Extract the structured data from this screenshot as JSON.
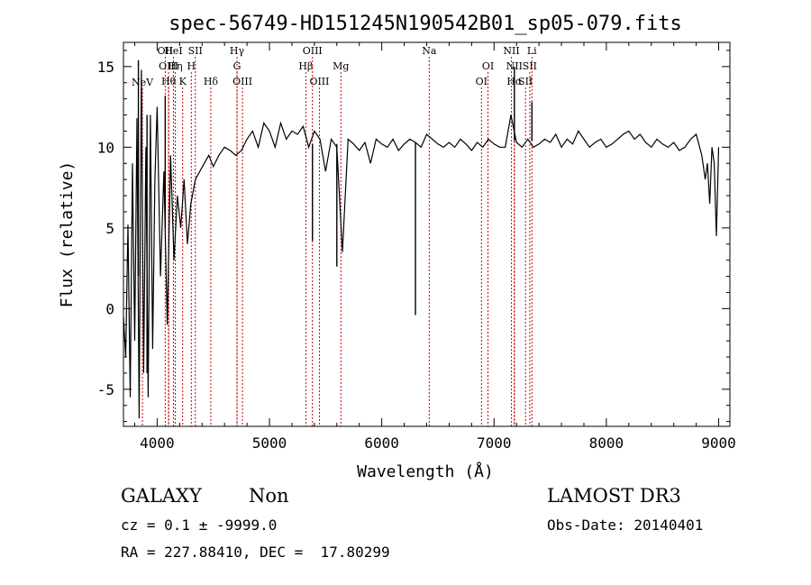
{
  "chart_data": {
    "type": "line",
    "title": "spec-56749-HD151245N190542B01_sp05-079.fits",
    "xlabel": "Wavelength (Å)",
    "ylabel": "Flux (relative)",
    "xlim": [
      3700,
      9100
    ],
    "ylim": [
      -7.3,
      16.5
    ],
    "x_ticks": [
      4000,
      5000,
      6000,
      7000,
      8000,
      9000
    ],
    "y_ticks": [
      -5,
      0,
      5,
      10,
      15
    ],
    "grid": false,
    "line_color": "#000000",
    "marker_color": "#cc0000",
    "series": [
      {
        "x": [
          3700,
          3720,
          3740,
          3760,
          3780,
          3800,
          3820,
          3840,
          3860,
          3880,
          3900,
          3920,
          3940,
          3960,
          3980,
          4000,
          4030,
          4060,
          4090,
          4120,
          4150,
          4180,
          4210,
          4240,
          4270,
          4300,
          4340,
          4380,
          4420,
          4460,
          4500,
          4550,
          4600,
          4650,
          4700,
          4750,
          4800,
          4850,
          4900,
          4950,
          5000,
          5050,
          5100,
          5150,
          5200,
          5250,
          5300,
          5350,
          5400,
          5450,
          5500,
          5550,
          5600,
          5650,
          5700,
          5750,
          5800,
          5850,
          5900,
          5950,
          6000,
          6050,
          6100,
          6150,
          6200,
          6250,
          6300,
          6350,
          6400,
          6450,
          6500,
          6550,
          6600,
          6650,
          6700,
          6750,
          6800,
          6850,
          6900,
          6950,
          7000,
          7050,
          7100,
          7150,
          7200,
          7250,
          7300,
          7350,
          7400,
          7450,
          7500,
          7550,
          7600,
          7650,
          7700,
          7750,
          7800,
          7850,
          7900,
          7950,
          8000,
          8050,
          8100,
          8150,
          8200,
          8250,
          8300,
          8350,
          8400,
          8450,
          8500,
          8550,
          8600,
          8650,
          8700,
          8750,
          8800,
          8850,
          8880,
          8900,
          8920,
          8940,
          8960,
          8980,
          9000
        ],
        "y": [
          -0.5,
          -3.0,
          5.2,
          -5.5,
          9.0,
          -2.0,
          11.8,
          -6.8,
          14.8,
          -4.0,
          10.0,
          -5.5,
          12.0,
          -2.5,
          8.0,
          12.5,
          2.0,
          8.5,
          -1.0,
          9.5,
          3.0,
          7.0,
          5.0,
          8.0,
          4.0,
          6.5,
          8.0,
          8.5,
          9.0,
          9.5,
          8.8,
          9.5,
          10.0,
          9.8,
          9.5,
          9.8,
          10.5,
          11.0,
          10.0,
          11.5,
          11.0,
          10.0,
          11.5,
          10.5,
          11.0,
          10.8,
          11.3,
          10.0,
          11.0,
          10.5,
          8.5,
          10.5,
          10.0,
          3.5,
          10.5,
          10.2,
          9.8,
          10.3,
          9.0,
          10.5,
          10.2,
          10.0,
          10.5,
          9.8,
          10.2,
          10.5,
          10.3,
          10.0,
          10.8,
          10.5,
          10.2,
          10.0,
          10.3,
          10.0,
          10.5,
          10.2,
          9.8,
          10.3,
          10.0,
          10.5,
          10.2,
          10.0,
          10.0,
          12.0,
          10.3,
          10.0,
          10.5,
          10.0,
          10.2,
          10.5,
          10.3,
          10.8,
          10.0,
          10.5,
          10.2,
          11.0,
          10.5,
          10.0,
          10.3,
          10.5,
          10.0,
          10.2,
          10.5,
          10.8,
          11.0,
          10.5,
          10.8,
          10.3,
          10.0,
          10.5,
          10.2,
          10.0,
          10.3,
          9.8,
          10.0,
          10.5,
          10.8,
          9.5,
          8.0,
          9.0,
          6.5,
          10.0,
          9.0,
          4.5,
          10.0
        ]
      }
    ],
    "spikes": [
      {
        "x": 3833,
        "y0": 2,
        "y1": 15.4
      },
      {
        "x": 3910,
        "y0": -4,
        "y1": 12.0
      },
      {
        "x": 4072,
        "y0": 5,
        "y1": 13.2
      },
      {
        "x": 6300,
        "y0": 10.3,
        "y1": -0.4
      },
      {
        "x": 5600,
        "y0": 10.2,
        "y1": 2.6
      },
      {
        "x": 5383,
        "y0": 10.2,
        "y1": 4.2
      },
      {
        "x": 7181,
        "y0": 10.4,
        "y1": 15.0
      },
      {
        "x": 7337,
        "y0": 10.4,
        "y1": 12.8
      }
    ],
    "line_markers": [
      {
        "x": 3869,
        "label": "NeV",
        "row": 3
      },
      {
        "x": 4072,
        "label": "OII",
        "row": 0
      },
      {
        "x": 4102,
        "label": "OIII",
        "row": 1
      },
      {
        "x": 4102,
        "label": "Hθ",
        "row": 2
      },
      {
        "x": 4145,
        "label": "HeI",
        "row": 0
      },
      {
        "x": 4161,
        "label": "Hη",
        "row": 1
      },
      {
        "x": 4227,
        "label": "K",
        "row": 2
      },
      {
        "x": 4304,
        "label": "H",
        "row": 1
      },
      {
        "x": 4340,
        "label": "SII",
        "row": 0
      },
      {
        "x": 4478,
        "label": "Hδ",
        "row": 2
      },
      {
        "x": 4711,
        "label": "Hγ",
        "row": 0
      },
      {
        "x": 4711,
        "label": "G",
        "row": 1
      },
      {
        "x": 4760,
        "label": "OIII",
        "row": 2
      },
      {
        "x": 5324,
        "label": "Hβ",
        "row": 1
      },
      {
        "x": 5383,
        "label": "OIII",
        "row": 0
      },
      {
        "x": 5445,
        "label": "OIII",
        "row": 2
      },
      {
        "x": 5636,
        "label": "Mg",
        "row": 1
      },
      {
        "x": 6423,
        "label": "Na",
        "row": 0
      },
      {
        "x": 6888,
        "label": "OI",
        "row": 2
      },
      {
        "x": 6946,
        "label": "OI",
        "row": 1
      },
      {
        "x": 7155,
        "label": "NII",
        "row": 0
      },
      {
        "x": 7181,
        "label": "NII",
        "row": 1
      },
      {
        "x": 7181,
        "label": "Hα",
        "row": 2
      },
      {
        "x": 7280,
        "label": "SII",
        "row": 2
      },
      {
        "x": 7318,
        "label": "SII",
        "row": 1
      },
      {
        "x": 7337,
        "label": "Li",
        "row": 0
      }
    ]
  },
  "footer": {
    "class_label": "GALAXY",
    "subclass_label": "Non",
    "survey_label": "LAMOST DR3",
    "cz_text": "cz = 0.1 ± -9999.0",
    "obs_date_text": "Obs-Date: 20140401",
    "coords_text": "RA = 227.88410, DEC =  17.80299"
  }
}
